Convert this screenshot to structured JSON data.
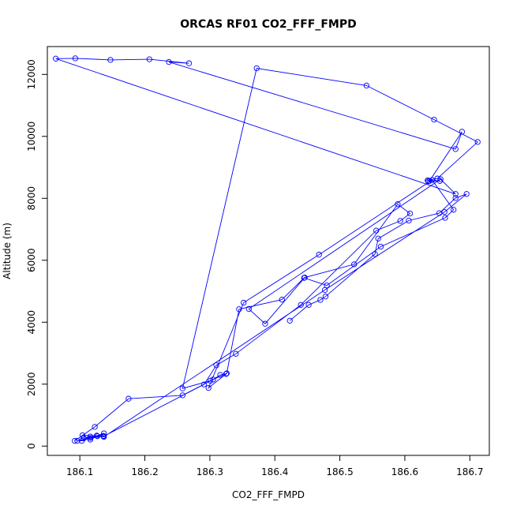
{
  "chart_data": {
    "type": "line",
    "title": "ORCAS RF01 CO2_FFF_FMPD",
    "xlabel": "CO2_FFF_FMPD",
    "ylabel": "Altitude (m)",
    "xlim": [
      186.05,
      186.73
    ],
    "ylim": [
      -300,
      12900
    ],
    "x_ticks": [
      186.1,
      186.2,
      186.3,
      186.4,
      186.5,
      186.6,
      186.7
    ],
    "y_ticks": [
      0,
      2000,
      4000,
      6000,
      8000,
      10000,
      12000
    ],
    "x_tick_labels": [
      "186.1",
      "186.2",
      "186.3",
      "186.4",
      "186.5",
      "186.6",
      "186.7"
    ],
    "y_tick_labels": [
      "0",
      "2000",
      "4000",
      "6000",
      "8000",
      "10000",
      "12000"
    ],
    "grid": false,
    "legend": "none",
    "marker": "open-circle",
    "color": "#0000ff",
    "series": [
      {
        "x": [
          186.092,
          186.123,
          186.175,
          186.258,
          186.305,
          186.316,
          186.325,
          186.298,
          186.352,
          186.468,
          186.642,
          186.675,
          186.662,
          186.563,
          186.48,
          186.445,
          186.411,
          186.345,
          186.326,
          186.301,
          186.258,
          186.372,
          186.541,
          186.645,
          186.712,
          186.65,
          186.635,
          186.654,
          186.636,
          186.638,
          186.688,
          186.678,
          186.237,
          186.268,
          186.207,
          186.147,
          186.093,
          186.063,
          186.678,
          186.655,
          186.36,
          186.385,
          186.446,
          186.522,
          186.589,
          186.608,
          186.593,
          186.556,
          186.44,
          186.34,
          186.31,
          186.291,
          186.137,
          186.104,
          186.116,
          186.127,
          186.137,
          186.103,
          186.096,
          186.116,
          186.136,
          186.106,
          186.116,
          186.126,
          186.137,
          186.477,
          186.661,
          186.695,
          186.678,
          186.653,
          186.606,
          186.559,
          186.554,
          186.478,
          186.47,
          186.452,
          186.423
        ],
        "y": [
          170,
          620,
          1530,
          1640,
          2150,
          2300,
          2330,
          1880,
          4630,
          6180,
          8590,
          7630,
          7370,
          6440,
          5190,
          5430,
          4730,
          4420,
          2350,
          2110,
          1860,
          12200,
          11640,
          10540,
          9820,
          8640,
          8580,
          8560,
          8550,
          8560,
          10150,
          9590,
          12400,
          12360,
          12490,
          12470,
          12520,
          12510,
          8140,
          8620,
          4430,
          3950,
          5440,
          5870,
          7810,
          7510,
          7270,
          6960,
          4560,
          2980,
          2610,
          1990,
          320,
          350,
          210,
          320,
          410,
          170,
          170,
          260,
          330,
          250,
          310,
          340,
          300,
          5040,
          7560,
          8140,
          8010,
          7520,
          7280,
          6700,
          6200,
          4830,
          4720,
          4560,
          4050
        ]
      }
    ]
  }
}
